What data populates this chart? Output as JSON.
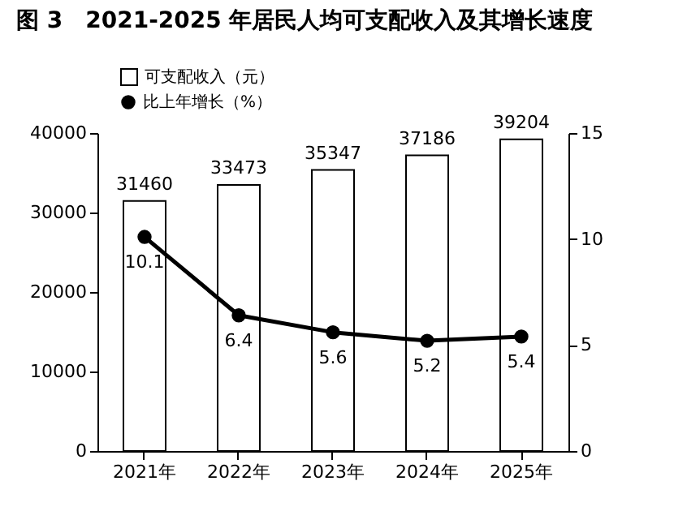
{
  "chart_data": {
    "type": "bar",
    "title": "图 3　2021-2025 年居民人均可支配收入及其增长速度",
    "categories": [
      "2021年",
      "2022年",
      "2023年",
      "2024年",
      "2025年"
    ],
    "series": [
      {
        "name": "可支配收入（元）",
        "color": "#ffffff",
        "values": [
          31460,
          33473,
          35347,
          37186,
          39204
        ]
      },
      {
        "name": "比上年增长（%）",
        "type": "line",
        "axis": "y2",
        "color": "#000000",
        "marker": "circle",
        "values": [
          10.1,
          6.4,
          5.6,
          5.2,
          5.4
        ]
      }
    ],
    "ylim": [
      0,
      40000
    ],
    "yticks": [
      0,
      10000,
      20000,
      30000,
      40000
    ],
    "y2lim": [
      0,
      15
    ],
    "y2ticks": [
      0,
      5,
      10,
      15
    ],
    "data_labels": true,
    "legend": "top left",
    "grid": false
  }
}
